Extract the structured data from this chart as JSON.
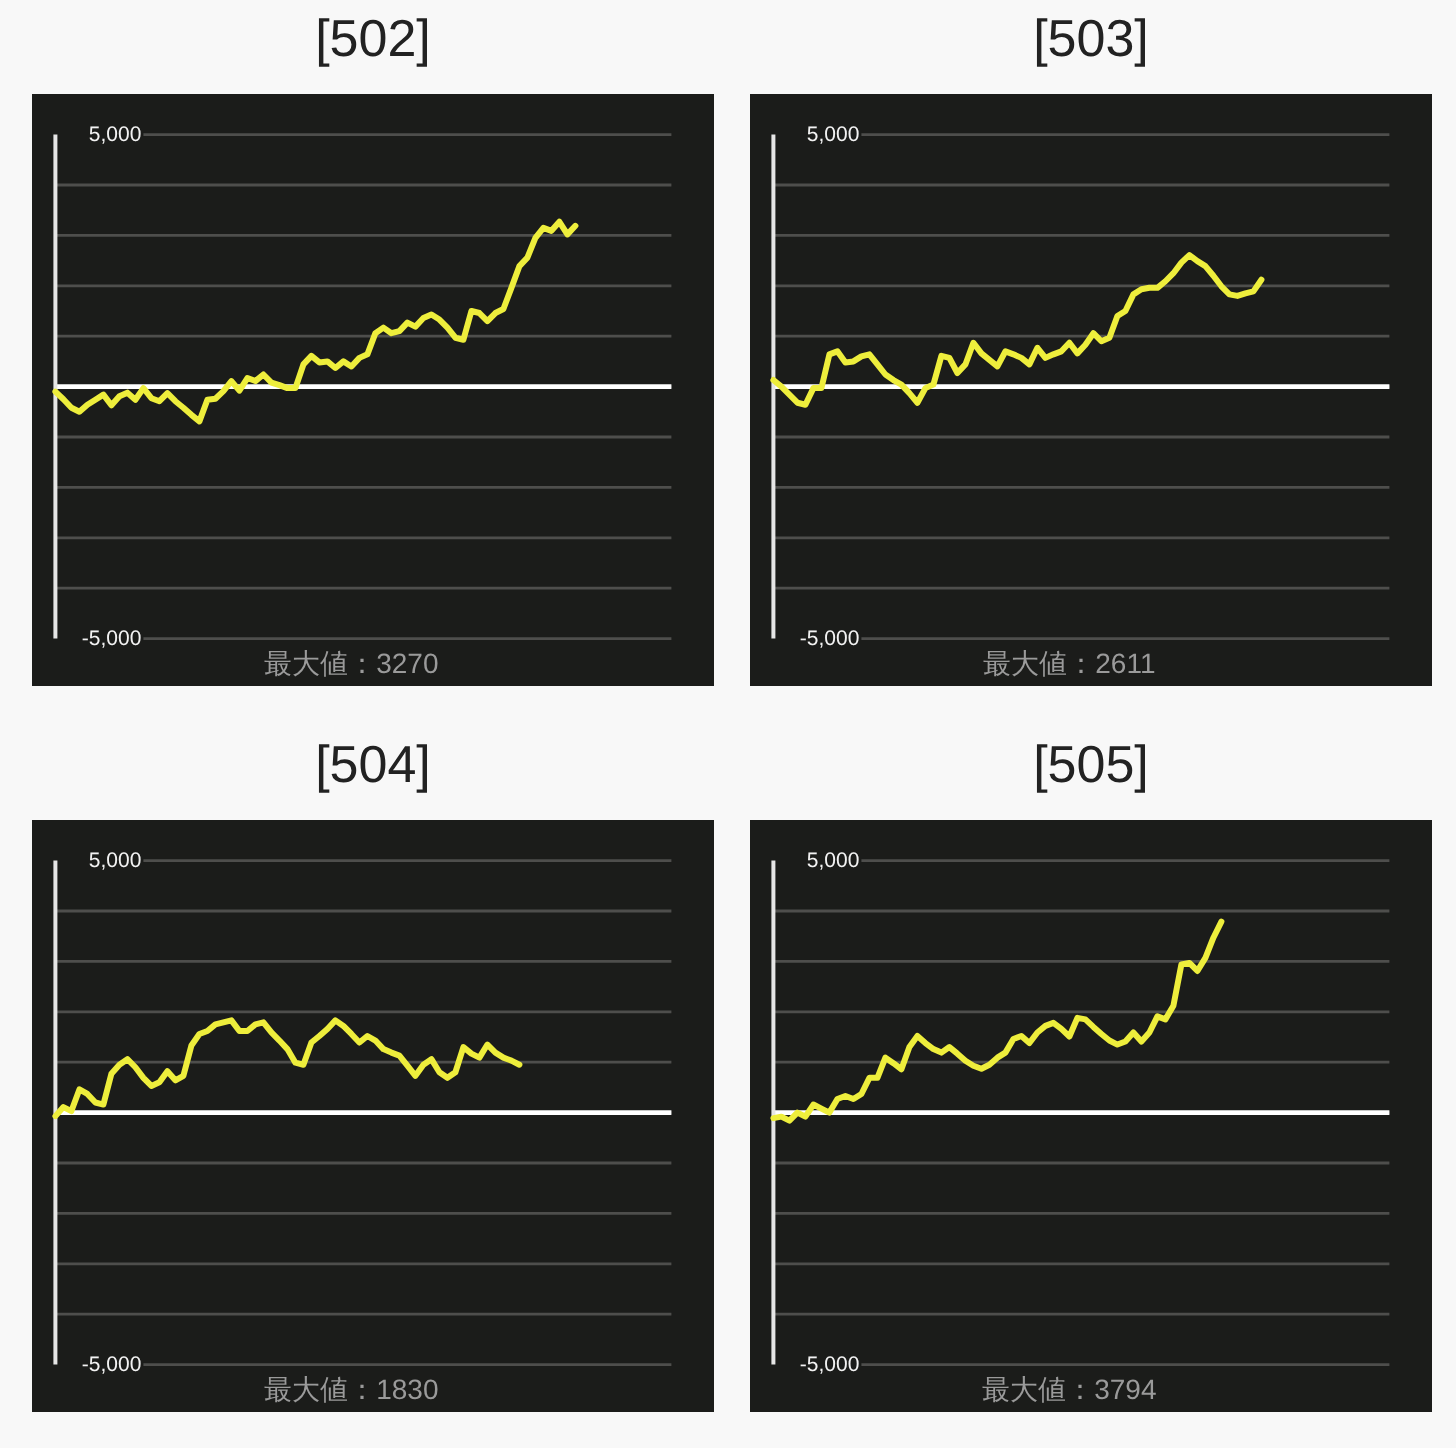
{
  "chart_data": [
    {
      "type": "line",
      "title": "[502]",
      "categories": [
        null,
        null,
        null,
        null,
        null,
        null,
        null,
        null,
        null,
        null,
        null,
        null,
        null,
        null,
        null,
        null,
        null,
        null,
        null,
        null,
        null,
        null,
        null,
        null,
        null,
        null,
        null,
        null,
        null,
        null,
        null,
        null,
        null,
        null,
        null,
        null,
        null,
        null,
        null,
        null,
        null,
        null,
        null,
        null,
        null,
        null,
        null,
        null,
        null,
        null,
        null,
        null,
        null,
        null,
        null,
        null,
        null,
        null,
        null,
        null,
        null,
        null,
        null,
        null,
        null,
        null,
        null,
        null,
        null,
        null,
        null,
        null,
        null,
        null,
        null,
        null,
        null,
        null
      ],
      "series": [
        {
          "color": "#eeee3c",
          "values": [
            -100,
            -250,
            -420,
            -500,
            -360,
            -260,
            -160,
            -370,
            -190,
            -120,
            -260,
            -30,
            -230,
            -290,
            -130,
            -290,
            -420,
            -560,
            -690,
            -260,
            -240,
            -90,
            110,
            -80,
            170,
            110,
            240,
            80,
            30,
            -30,
            -30,
            440,
            610,
            480,
            500,
            370,
            500,
            400,
            570,
            640,
            1060,
            1170,
            1060,
            1100,
            1270,
            1190,
            1360,
            1430,
            1330,
            1170,
            970,
            930,
            1500,
            1460,
            1300,
            1460,
            1540,
            1960,
            2390,
            2560,
            2950,
            3150,
            3090,
            3270,
            3020,
            3190,
            null,
            null,
            null,
            null,
            null,
            null,
            null,
            null,
            null,
            null,
            null,
            null
          ]
        }
      ],
      "ylim": [
        -5000,
        5000
      ],
      "yticks": [
        {
          "value": 5000,
          "label": "5,000"
        },
        {
          "value": 4000,
          "label": null
        },
        {
          "value": 3000,
          "label": null
        },
        {
          "value": 2000,
          "label": null
        },
        {
          "value": 1000,
          "label": null
        },
        {
          "value": 0,
          "label": null
        },
        {
          "value": -1000,
          "label": null
        },
        {
          "value": -2000,
          "label": null
        },
        {
          "value": -3000,
          "label": null
        },
        {
          "value": -4000,
          "label": null
        },
        {
          "value": -5000,
          "label": "-5,000"
        }
      ],
      "grid": "y",
      "tick_labels": "y",
      "ref_lines": [
        {
          "axis": "y",
          "value": 0,
          "color": "#ffffff"
        }
      ],
      "annotations": [
        "最大値：3270"
      ]
    },
    {
      "type": "line",
      "title": "[503]",
      "categories": [
        null,
        null,
        null,
        null,
        null,
        null,
        null,
        null,
        null,
        null,
        null,
        null,
        null,
        null,
        null,
        null,
        null,
        null,
        null,
        null,
        null,
        null,
        null,
        null,
        null,
        null,
        null,
        null,
        null,
        null,
        null,
        null,
        null,
        null,
        null,
        null,
        null,
        null,
        null,
        null,
        null,
        null,
        null,
        null,
        null,
        null,
        null,
        null,
        null,
        null,
        null,
        null,
        null,
        null,
        null,
        null,
        null,
        null,
        null,
        null,
        null,
        null,
        null,
        null,
        null,
        null,
        null,
        null,
        null,
        null,
        null,
        null,
        null,
        null,
        null,
        null,
        null,
        null
      ],
      "series": [
        {
          "color": "#eeee3c",
          "values": [
            130,
            0,
            -160,
            -320,
            -360,
            -30,
            -30,
            640,
            700,
            480,
            500,
            600,
            640,
            440,
            240,
            130,
            40,
            -130,
            -320,
            -30,
            40,
            610,
            570,
            270,
            440,
            870,
            660,
            530,
            400,
            700,
            640,
            570,
            440,
            770,
            570,
            640,
            700,
            870,
            660,
            830,
            1060,
            900,
            970,
            1400,
            1500,
            1830,
            1930,
            1960,
            1960,
            2090,
            2250,
            2460,
            2610,
            2490,
            2390,
            2200,
            1990,
            1830,
            1800,
            1850,
            1890,
            2120,
            null,
            null,
            null,
            null,
            null,
            null,
            null,
            null,
            null,
            null,
            null,
            null,
            null,
            null,
            null,
            null
          ]
        }
      ],
      "ylim": [
        -5000,
        5000
      ],
      "yticks": [
        {
          "value": 5000,
          "label": "5,000"
        },
        {
          "value": 4000,
          "label": null
        },
        {
          "value": 3000,
          "label": null
        },
        {
          "value": 2000,
          "label": null
        },
        {
          "value": 1000,
          "label": null
        },
        {
          "value": 0,
          "label": null
        },
        {
          "value": -1000,
          "label": null
        },
        {
          "value": -2000,
          "label": null
        },
        {
          "value": -3000,
          "label": null
        },
        {
          "value": -4000,
          "label": null
        },
        {
          "value": -5000,
          "label": "-5,000"
        }
      ],
      "grid": "y",
      "tick_labels": "y",
      "ref_lines": [
        {
          "axis": "y",
          "value": 0,
          "color": "#ffffff"
        }
      ],
      "annotations": [
        "最大値：2611"
      ]
    },
    {
      "type": "line",
      "title": "[504]",
      "categories": [
        null,
        null,
        null,
        null,
        null,
        null,
        null,
        null,
        null,
        null,
        null,
        null,
        null,
        null,
        null,
        null,
        null,
        null,
        null,
        null,
        null,
        null,
        null,
        null,
        null,
        null,
        null,
        null,
        null,
        null,
        null,
        null,
        null,
        null,
        null,
        null,
        null,
        null,
        null,
        null,
        null,
        null,
        null,
        null,
        null,
        null,
        null,
        null,
        null,
        null,
        null,
        null,
        null,
        null,
        null,
        null,
        null,
        null,
        null,
        null,
        null,
        null,
        null,
        null,
        null,
        null,
        null,
        null,
        null,
        null,
        null,
        null,
        null,
        null,
        null,
        null,
        null,
        null
      ],
      "series": [
        {
          "color": "#eeee3c",
          "values": [
            -70,
            110,
            30,
            460,
            370,
            200,
            160,
            770,
            950,
            1060,
            900,
            690,
            530,
            600,
            820,
            640,
            730,
            1330,
            1560,
            1620,
            1750,
            1790,
            1830,
            1620,
            1620,
            1750,
            1790,
            1590,
            1430,
            1260,
            990,
            950,
            1390,
            1520,
            1660,
            1830,
            1720,
            1560,
            1390,
            1520,
            1430,
            1260,
            1190,
            1130,
            930,
            730,
            950,
            1060,
            800,
            690,
            800,
            1300,
            1170,
            1090,
            1350,
            1190,
            1090,
            1030,
            950,
            null,
            null,
            null,
            null,
            null,
            null,
            null,
            null,
            null,
            null,
            null,
            null,
            null,
            null,
            null,
            null,
            null,
            null,
            null
          ]
        }
      ],
      "ylim": [
        -5000,
        5000
      ],
      "yticks": [
        {
          "value": 5000,
          "label": "5,000"
        },
        {
          "value": 4000,
          "label": null
        },
        {
          "value": 3000,
          "label": null
        },
        {
          "value": 2000,
          "label": null
        },
        {
          "value": 1000,
          "label": null
        },
        {
          "value": 0,
          "label": null
        },
        {
          "value": -1000,
          "label": null
        },
        {
          "value": -2000,
          "label": null
        },
        {
          "value": -3000,
          "label": null
        },
        {
          "value": -4000,
          "label": null
        },
        {
          "value": -5000,
          "label": "-5,000"
        }
      ],
      "grid": "y",
      "tick_labels": "y",
      "ref_lines": [
        {
          "axis": "y",
          "value": 0,
          "color": "#ffffff"
        }
      ],
      "annotations": [
        "最大値：1830"
      ]
    },
    {
      "type": "line",
      "title": "[505]",
      "categories": [
        null,
        null,
        null,
        null,
        null,
        null,
        null,
        null,
        null,
        null,
        null,
        null,
        null,
        null,
        null,
        null,
        null,
        null,
        null,
        null,
        null,
        null,
        null,
        null,
        null,
        null,
        null,
        null,
        null,
        null,
        null,
        null,
        null,
        null,
        null,
        null,
        null,
        null,
        null,
        null,
        null,
        null,
        null,
        null,
        null,
        null,
        null,
        null,
        null,
        null,
        null,
        null,
        null,
        null,
        null,
        null,
        null,
        null,
        null,
        null,
        null,
        null,
        null,
        null,
        null,
        null,
        null,
        null,
        null,
        null,
        null,
        null,
        null,
        null,
        null,
        null,
        null,
        null
      ],
      "series": [
        {
          "color": "#eeee3c",
          "values": [
            -110,
            -80,
            -160,
            0,
            -80,
            160,
            80,
            0,
            270,
            330,
            270,
            370,
            690,
            690,
            1090,
            980,
            860,
            1300,
            1520,
            1380,
            1260,
            1190,
            1300,
            1170,
            1030,
            930,
            870,
            950,
            1090,
            1190,
            1460,
            1520,
            1380,
            1590,
            1720,
            1780,
            1660,
            1510,
            1880,
            1850,
            1700,
            1560,
            1430,
            1350,
            1410,
            1590,
            1410,
            1590,
            1910,
            1850,
            2120,
            2940,
            2970,
            2810,
            3070,
            3470,
            3790,
            null,
            null,
            null,
            null,
            null,
            null,
            null,
            null,
            null,
            null,
            null,
            null,
            null,
            null,
            null,
            null,
            null,
            null,
            null,
            null,
            null
          ]
        }
      ],
      "ylim": [
        -5000,
        5000
      ],
      "yticks": [
        {
          "value": 5000,
          "label": "5,000"
        },
        {
          "value": 4000,
          "label": null
        },
        {
          "value": 3000,
          "label": null
        },
        {
          "value": 2000,
          "label": null
        },
        {
          "value": 1000,
          "label": null
        },
        {
          "value": 0,
          "label": null
        },
        {
          "value": -1000,
          "label": null
        },
        {
          "value": -2000,
          "label": null
        },
        {
          "value": -3000,
          "label": null
        },
        {
          "value": -4000,
          "label": null
        },
        {
          "value": -5000,
          "label": "-5,000"
        }
      ],
      "grid": "y",
      "tick_labels": "y",
      "ref_lines": [
        {
          "axis": "y",
          "value": 0,
          "color": "#ffffff"
        }
      ],
      "annotations": [
        "最大値：3794"
      ]
    }
  ]
}
